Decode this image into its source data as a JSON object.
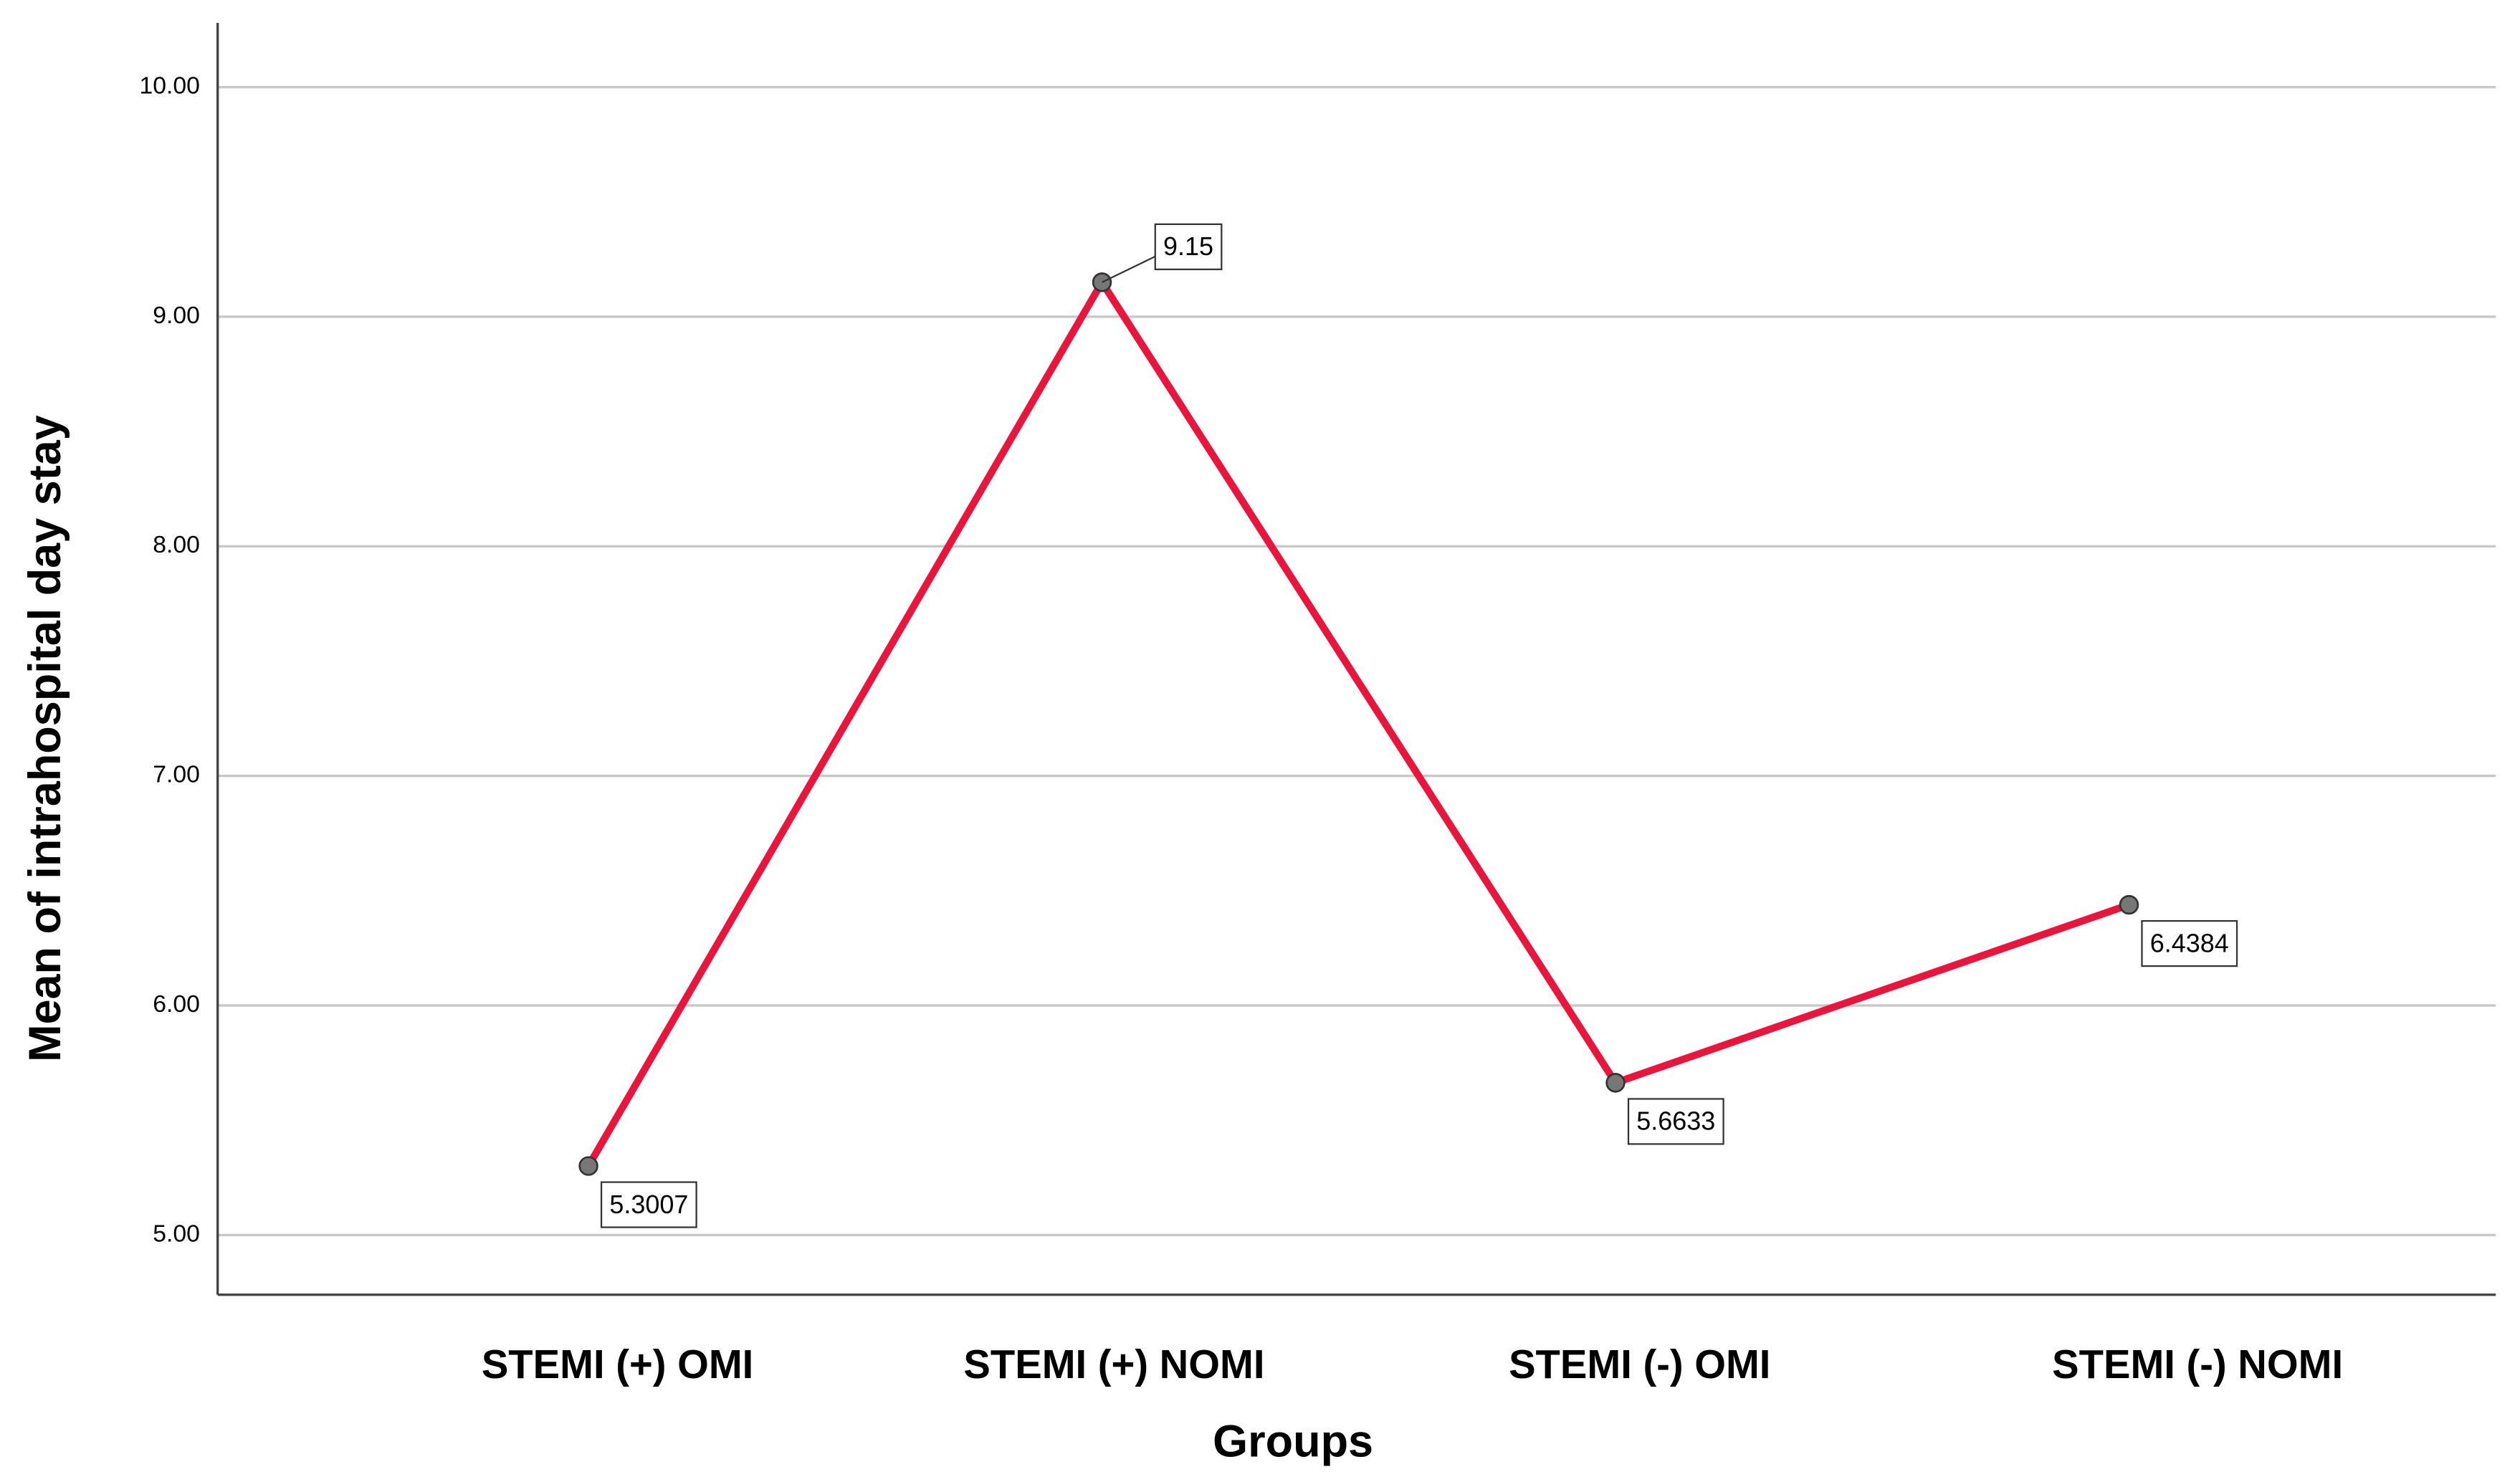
{
  "chart_data": {
    "type": "line",
    "x_label": "Groups",
    "y_label": "Mean of intrahospital day stay",
    "categories": [
      "STEMI (+) OMI",
      "STEMI (+) NOMI",
      "STEMI (-) OMI",
      "STEMI (-) NOMI"
    ],
    "values": [
      5.3007,
      9.15,
      5.6633,
      6.4384
    ],
    "color": "#e8163c",
    "marker_color": "#777777",
    "ylim": [
      4.74,
      10.28
    ],
    "yticks": [
      {
        "value": 5,
        "label": "5.00"
      },
      {
        "value": 6,
        "label": "6.00"
      },
      {
        "value": 7,
        "label": "7.00"
      },
      {
        "value": 8,
        "label": "8.00"
      },
      {
        "value": 9,
        "label": "9.00"
      },
      {
        "value": 10,
        "label": "10.00"
      }
    ],
    "grid": true
  }
}
